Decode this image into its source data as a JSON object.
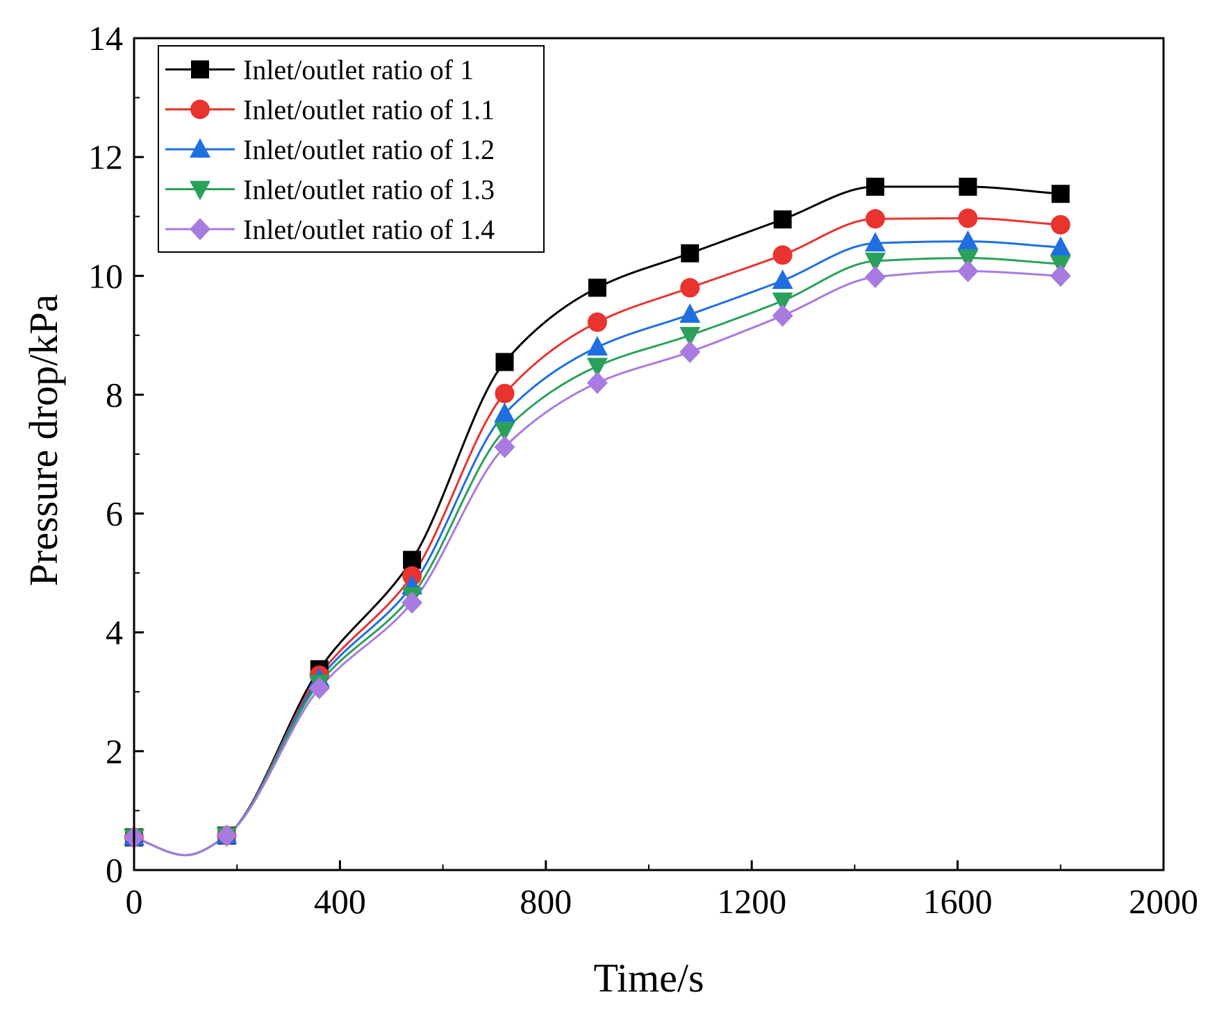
{
  "chart_data": {
    "type": "line",
    "title": "",
    "xlabel": "Time/s",
    "ylabel": "Pressure drop/kPa",
    "xlim": [
      0,
      2000
    ],
    "ylim": [
      0,
      14
    ],
    "xticks": [
      0,
      400,
      800,
      1200,
      1600,
      2000
    ],
    "yticks": [
      0,
      2,
      4,
      6,
      8,
      10,
      12,
      14
    ],
    "grid": false,
    "legend_position": "top-left",
    "x": [
      0,
      180,
      360,
      540,
      720,
      900,
      1080,
      1260,
      1440,
      1620,
      1800
    ],
    "series": [
      {
        "name": "Inlet/outlet ratio of 1",
        "color": "#000000",
        "marker": "square",
        "values": [
          0.55,
          0.58,
          3.38,
          5.22,
          8.55,
          9.8,
          10.38,
          10.95,
          11.5,
          11.5,
          11.38
        ]
      },
      {
        "name": "Inlet/outlet ratio of 1.1",
        "color": "#e8332e",
        "marker": "circle",
        "values": [
          0.55,
          0.58,
          3.28,
          4.95,
          8.02,
          9.22,
          9.8,
          10.35,
          10.96,
          10.97,
          10.86
        ]
      },
      {
        "name": "Inlet/outlet ratio of 1.2",
        "color": "#1f6fe0",
        "marker": "triangle-up",
        "values": [
          0.55,
          0.58,
          3.22,
          4.78,
          7.68,
          8.8,
          9.35,
          9.92,
          10.55,
          10.58,
          10.48
        ]
      },
      {
        "name": "Inlet/outlet ratio of 1.3",
        "color": "#2aa05a",
        "marker": "triangle-down",
        "values": [
          0.55,
          0.58,
          3.15,
          4.62,
          7.4,
          8.48,
          9.0,
          9.58,
          10.25,
          10.3,
          10.2
        ]
      },
      {
        "name": "Inlet/outlet ratio of 1.4",
        "color": "#a77be0",
        "marker": "diamond",
        "values": [
          0.55,
          0.58,
          3.06,
          4.5,
          7.12,
          8.2,
          8.72,
          9.33,
          9.98,
          10.08,
          10.0
        ]
      }
    ]
  }
}
